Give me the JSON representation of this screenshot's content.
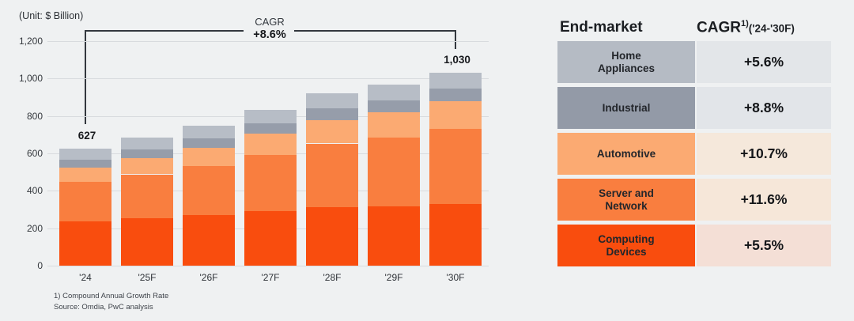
{
  "chart_data": {
    "type": "bar",
    "stacked": true,
    "unit_label": "(Unit: $ Billion)",
    "categories": [
      "'24",
      "'25F",
      "'26F",
      "'27F",
      "'28F",
      "'29F",
      "'30F"
    ],
    "series": [
      {
        "id": "computing-devices",
        "name": "Computing Devices",
        "color": "#f94d0e",
        "values": [
          238,
          254,
          269,
          291,
          312,
          318,
          329
        ]
      },
      {
        "id": "server-network",
        "name": "Server and Network",
        "color": "#f97e3f",
        "values": [
          208,
          234,
          263,
          301,
          341,
          368,
          403
        ]
      },
      {
        "id": "automotive",
        "name": "Automotive",
        "color": "#fbaa72",
        "values": [
          79,
          88,
          98,
          112,
          126,
          134,
          145
        ]
      },
      {
        "id": "industrial",
        "name": "Industrial",
        "color": "#969daa",
        "values": [
          42,
          46,
          50,
          56,
          62,
          65,
          70
        ]
      },
      {
        "id": "home-appliances",
        "name": "Home Appliances",
        "color": "#b7bdc6",
        "values": [
          60,
          64,
          68,
          73,
          79,
          81,
          83
        ]
      }
    ],
    "totals": [
      627,
      686,
      748,
      833,
      920,
      966,
      1030
    ],
    "total_labels": [
      {
        "category_index": 0,
        "text": "627"
      },
      {
        "category_index": 6,
        "text": "1,030"
      }
    ],
    "y_axis": {
      "min": 0,
      "max": 1200,
      "step": 200,
      "tick_labels": [
        "0",
        "200",
        "400",
        "600",
        "800",
        "1,000",
        "1,200"
      ]
    },
    "grid": true,
    "legend_position": "none",
    "cagr_annotation": {
      "label": "CAGR",
      "value": "+8.6%"
    }
  },
  "table": {
    "header": {
      "end_market": "End-market",
      "cagr_main": "CAGR",
      "cagr_superscript": "1)",
      "cagr_range": "('24-'30F)"
    },
    "rows": [
      {
        "id": "home-appliances",
        "label_lines": [
          "Home",
          "Appliances"
        ],
        "value": "+5.6%",
        "label_bg": "#b5bbc4",
        "value_bg": "#e3e6e9"
      },
      {
        "id": "industrial",
        "label_lines": [
          "Industrial"
        ],
        "value": "+8.8%",
        "label_bg": "#939aa7",
        "value_bg": "#e2e5e9"
      },
      {
        "id": "automotive",
        "label_lines": [
          "Automotive"
        ],
        "value": "+10.7%",
        "label_bg": "#fbaa72",
        "value_bg": "#f5e8db"
      },
      {
        "id": "server-network",
        "label_lines": [
          "Server and",
          "Network"
        ],
        "value": "+11.6%",
        "label_bg": "#f97e3f",
        "value_bg": "#f6e7d9"
      },
      {
        "id": "computing-devices",
        "label_lines": [
          "Computing",
          "Devices"
        ],
        "value": "+5.5%",
        "label_bg": "#f94d0e",
        "value_bg": "#f4dfd6"
      }
    ]
  },
  "footnote": {
    "line1": "1) Compound Annual Growth Rate",
    "line2": "Source: Omdia, PwC analysis"
  },
  "colors": {
    "background": "#eff1f2",
    "gridline": "#d8dbde",
    "bracket": "#33383e"
  }
}
